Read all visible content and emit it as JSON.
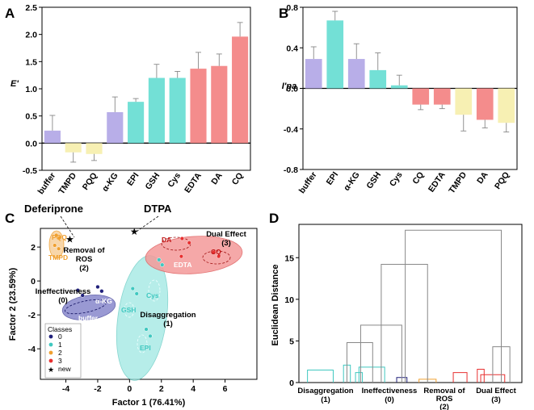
{
  "chart_data": [
    {
      "panel": "A",
      "type": "bar",
      "ylabel": "E'",
      "ylim": [
        -0.5,
        2.5
      ],
      "yticks": [
        -0.5,
        0.0,
        0.5,
        1.0,
        1.5,
        2.0,
        2.5
      ],
      "ytick_labels": [
        "-0.5",
        "0.0",
        "0.5",
        "1.0",
        "1.5",
        "2.0",
        "2.5"
      ],
      "categories": [
        "buffer",
        "TMPD",
        "PQQ",
        "α-KG",
        "EPI",
        "GSH",
        "Cys",
        "EDTA",
        "DA",
        "CQ"
      ],
      "values": [
        0.23,
        -0.17,
        -0.2,
        0.57,
        0.76,
        1.2,
        1.2,
        1.37,
        1.42,
        1.96
      ],
      "errors": [
        0.28,
        0.18,
        0.12,
        0.28,
        0.06,
        0.25,
        0.12,
        0.3,
        0.22,
        0.26
      ],
      "colors": [
        "#b8aee8",
        "#f7f0b3",
        "#f7f0b3",
        "#b8aee8",
        "#73e0d6",
        "#73e0d6",
        "#73e0d6",
        "#f48c8c",
        "#f48c8c",
        "#f48c8c"
      ]
    },
    {
      "panel": "B",
      "type": "bar",
      "ylabel": "I'pa",
      "ylim": [
        -0.8,
        0.8
      ],
      "yticks": [
        -0.8,
        -0.4,
        0.0,
        0.4,
        0.8
      ],
      "ytick_labels": [
        "-0.8",
        "-0.4",
        "0.0",
        "0.4",
        "0.8"
      ],
      "categories": [
        "buffer",
        "EPI",
        "α-KG",
        "GSH",
        "Cys",
        "CQ",
        "EDTA",
        "TMPD",
        "DA",
        "PQQ"
      ],
      "values": [
        0.29,
        0.67,
        0.29,
        0.18,
        0.03,
        -0.16,
        -0.16,
        -0.26,
        -0.31,
        -0.34
      ],
      "errors": [
        0.12,
        0.09,
        0.15,
        0.17,
        0.1,
        0.05,
        0.04,
        0.16,
        0.08,
        0.09
      ],
      "colors": [
        "#b8aee8",
        "#73e0d6",
        "#b8aee8",
        "#73e0d6",
        "#73e0d6",
        "#f48c8c",
        "#f48c8c",
        "#f7f0b3",
        "#f48c8c",
        "#f7f0b3"
      ]
    },
    {
      "panel": "C",
      "type": "scatter",
      "xlabel": "Factor 1 (76.41%)",
      "ylabel": "Factor 2 (23.59%)",
      "xlim": [
        -5.6,
        8.0
      ],
      "ylim": [
        -5.8,
        3.1
      ],
      "xticks": [
        -4,
        -2,
        0,
        2,
        4,
        6
      ],
      "xtick_labels": [
        "-4",
        "-2",
        "0",
        "2",
        "4",
        "6"
      ],
      "yticks": [
        -4,
        -2,
        0,
        2
      ],
      "ytick_labels": [
        "-4",
        "-2",
        "0",
        "2"
      ],
      "class_colors": [
        "#20207a",
        "#40c8c0",
        "#f0a030",
        "#e83030"
      ],
      "points": [
        {
          "x": -4.6,
          "y": 2.7,
          "cls": 2
        },
        {
          "x": -4.4,
          "y": 2.55,
          "cls": 2
        },
        {
          "x": -4.7,
          "y": 2.1,
          "cls": 2
        },
        {
          "x": -4.45,
          "y": 1.9,
          "cls": 2
        },
        {
          "x": -3.25,
          "y": -0.55,
          "cls": 0
        },
        {
          "x": -2.95,
          "y": -0.85,
          "cls": 0
        },
        {
          "x": -2.0,
          "y": -0.35,
          "cls": 0
        },
        {
          "x": -1.75,
          "y": -0.6,
          "cls": 0
        },
        {
          "x": 1.85,
          "y": 1.25,
          "cls": 1
        },
        {
          "x": 2.05,
          "y": 0.95,
          "cls": 1
        },
        {
          "x": 0.2,
          "y": -0.45,
          "cls": 1
        },
        {
          "x": 0.45,
          "y": -0.75,
          "cls": 1
        },
        {
          "x": 1.05,
          "y": -2.85,
          "cls": 1
        },
        {
          "x": 1.3,
          "y": -3.25,
          "cls": 1
        },
        {
          "x": 3.3,
          "y": 2.5,
          "cls": 3
        },
        {
          "x": 3.75,
          "y": 2.25,
          "cls": 3
        },
        {
          "x": 3.25,
          "y": 1.45,
          "cls": 3
        },
        {
          "x": 5.3,
          "y": 1.7,
          "cls": 3
        },
        {
          "x": 5.6,
          "y": 1.45,
          "cls": 3
        }
      ],
      "new_points": [
        {
          "x": -3.75,
          "y": 2.45,
          "label": "Deferiprone"
        },
        {
          "x": 0.3,
          "y": 2.9,
          "label": "DTPA"
        }
      ],
      "class_labels": [
        "Ineffectiveness",
        "(0)",
        "Disaggregation",
        "(1)",
        "Removal of",
        "ROS",
        "(2)",
        "Dual Effect",
        "(3)"
      ],
      "point_labels": [
        "PQQ",
        "TMPD",
        "α-KG",
        "buffer",
        "Cys",
        "GSH",
        "EPI",
        "DA",
        "CQ",
        "EDTA"
      ],
      "legend": {
        "title": "Classes",
        "entries": [
          "0",
          "1",
          "2",
          "3",
          "new"
        ]
      }
    },
    {
      "panel": "D",
      "type": "dendrogram",
      "ylabel": "Euclidean Distance",
      "ylim": [
        0,
        19
      ],
      "yticks": [
        0,
        5,
        10,
        15
      ],
      "ytick_labels": [
        "0",
        "5",
        "10",
        "15"
      ],
      "merges": [
        {
          "left_x": 0.5,
          "right_x": 2.0,
          "height": 1.5
        },
        {
          "left_x": 2.6,
          "right_x": 3.0,
          "height": 2.1
        },
        {
          "left_x": 3.3,
          "right_x": 3.7,
          "height": 1.2
        },
        {
          "left_x": 3.5,
          "right_x": 5.0,
          "height": 1.85
        },
        {
          "left_x": 5.7,
          "right_x": 6.3,
          "height": 0.6
        },
        {
          "left_x": 7.0,
          "right_x": 8.0,
          "height": 0.4
        },
        {
          "left_x": 9.0,
          "right_x": 9.8,
          "height": 1.2
        },
        {
          "left_x": 10.4,
          "right_x": 10.8,
          "height": 1.6
        },
        {
          "left_x": 10.6,
          "right_x": 12.0,
          "height": 0.95
        },
        {
          "left_x": 11.3,
          "right_x": 12.3,
          "height": 4.3
        },
        {
          "left_x": 2.8,
          "right_x": 4.3,
          "height": 4.8
        },
        {
          "left_x": 3.6,
          "right_x": 6.0,
          "height": 6.9
        },
        {
          "left_x": 4.8,
          "right_x": 7.5,
          "height": 14.2
        },
        {
          "left_x": 6.2,
          "right_x": 11.8,
          "height": 18.3
        }
      ],
      "leaves": [
        0.5,
        1.0,
        2.0,
        2.6,
        3.0,
        3.3,
        3.7,
        5.0,
        5.7,
        6.3,
        7.0,
        8.0,
        9.0,
        9.8,
        10.4,
        10.8,
        12.0,
        12.3
      ],
      "xlim": [
        0,
        13
      ],
      "group_labels": [
        "Disaggregation",
        "(1)",
        "Ineffectiveness",
        "(0)",
        "Removal of",
        "ROS",
        "(2)",
        "Dual Effect",
        "(3)"
      ]
    }
  ],
  "panel_letters": [
    "A",
    "B",
    "C",
    "D"
  ]
}
